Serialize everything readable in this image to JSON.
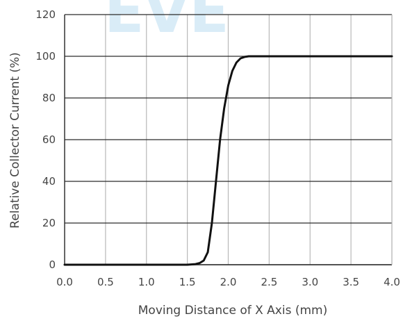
{
  "watermark": "EVE",
  "chart_data": {
    "type": "line",
    "title": "",
    "xlabel": "Moving Distance of X Axis (mm)",
    "ylabel": "Relative Collector Current (%)",
    "xlim": [
      0.0,
      4.0
    ],
    "ylim": [
      0,
      120
    ],
    "xticks": [
      "0.0",
      "0.5",
      "1.0",
      "1.5",
      "2.0",
      "2.5",
      "3.0",
      "3.5",
      "4.0"
    ],
    "xtick_values": [
      0.0,
      0.5,
      1.0,
      1.5,
      2.0,
      2.5,
      3.0,
      3.5,
      4.0
    ],
    "yticks": [
      "0",
      "20",
      "40",
      "60",
      "80",
      "100",
      "120"
    ],
    "ytick_values": [
      0,
      20,
      40,
      60,
      80,
      100,
      120
    ],
    "grid": true,
    "legend": "none",
    "line_color": "#111111",
    "series": [
      {
        "x": [
          0.0,
          1.0,
          1.5,
          1.6,
          1.65,
          1.7,
          1.75,
          1.8,
          1.85,
          1.9,
          1.95,
          2.0,
          2.05,
          2.1,
          2.15,
          2.2,
          2.25,
          2.3,
          2.5,
          3.0,
          4.0
        ],
        "y": [
          0,
          0,
          0,
          0.3,
          0.8,
          2,
          6,
          20,
          40,
          60,
          75,
          86,
          93,
          97,
          99,
          99.7,
          100,
          100,
          100,
          100,
          100
        ]
      }
    ]
  }
}
